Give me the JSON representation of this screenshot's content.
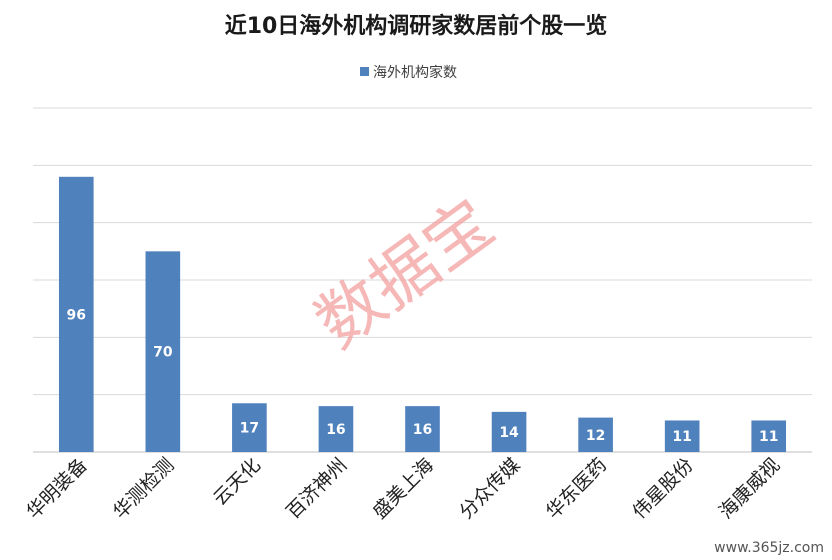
{
  "chart_data": {
    "type": "bar",
    "title": "近10日海外机构调研家数居前个股一览",
    "categories": [
      "华明装备",
      "华测检测",
      "云天化",
      "百济神州",
      "盛美上海",
      "分众传媒",
      "华东医药",
      "伟星股份",
      "海康威视"
    ],
    "series": [
      {
        "name": "海外机构家数",
        "values": [
          96,
          70,
          17,
          16,
          16,
          14,
          12,
          11,
          11
        ]
      }
    ],
    "data_labels": [
      "96",
      "70",
      "17",
      "16",
      "16",
      "14",
      "12",
      "11",
      "11"
    ],
    "ylim": [
      0,
      120
    ],
    "grid": true,
    "legend": "top-center",
    "colors": {
      "bar": "#4f81bd",
      "grid": "#d9d9d9",
      "watermark": "#f4a6a6"
    }
  },
  "watermark": "数据宝",
  "source_mark": "www.365jz.com"
}
